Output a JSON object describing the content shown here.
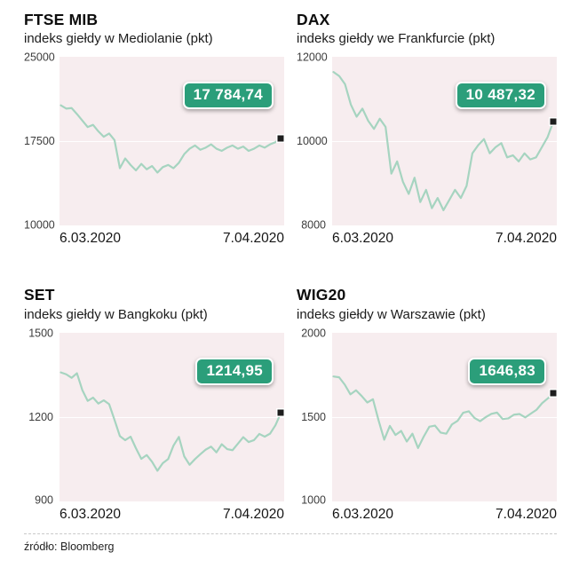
{
  "footer": {
    "source": "źródło: Bloomberg"
  },
  "colors": {
    "line": "#a6d4c0",
    "badge_bg": "#2b9e7a",
    "plot_bg": "#f7edef",
    "marker": "#1e1e1e"
  },
  "chart_data": [
    {
      "type": "line",
      "title": "FTSE MIB",
      "subtitle": "indeks giełdy w Mediolanie (pkt)",
      "badge": "17 784,74",
      "last_value": 17784.74,
      "ylim": [
        10000,
        25000
      ],
      "yticks": [
        25000,
        17500,
        10000
      ],
      "x_range": [
        "6.03.2020",
        "7.04.2020"
      ],
      "xlabel": "",
      "ylabel": "pkt",
      "legend": "none",
      "series": [
        20800,
        20500,
        20550,
        20000,
        19400,
        18800,
        19000,
        18400,
        17900,
        18200,
        17600,
        15000,
        15900,
        15300,
        14800,
        15400,
        14900,
        15200,
        14600,
        15100,
        15300,
        15000,
        15500,
        16300,
        16800,
        17100,
        16700,
        16900,
        17200,
        16800,
        16600,
        16900,
        17100,
        16800,
        17000,
        16600,
        16800,
        17100,
        16900,
        17200,
        17400,
        17784.74
      ]
    },
    {
      "type": "line",
      "title": "DAX",
      "subtitle": "indeks giełdy we Frankfurcie (pkt)",
      "badge": "10 487,32",
      "last_value": 10487.32,
      "ylim": [
        8000,
        12000
      ],
      "yticks": [
        12000,
        10000,
        8000
      ],
      "x_range": [
        "6.03.2020",
        "7.04.2020"
      ],
      "xlabel": "",
      "ylabel": "pkt",
      "legend": "none",
      "series": [
        11700,
        11600,
        11400,
        10900,
        10600,
        10800,
        10500,
        10300,
        10550,
        10350,
        9200,
        9500,
        9000,
        8700,
        9100,
        8500,
        8800,
        8350,
        8600,
        8300,
        8550,
        8800,
        8600,
        8900,
        9700,
        9900,
        10050,
        9700,
        9850,
        9950,
        9600,
        9650,
        9500,
        9700,
        9550,
        9600,
        9850,
        10100,
        10487.32
      ]
    },
    {
      "type": "line",
      "title": "SET",
      "subtitle": "indeks giełdy w Bangkoku (pkt)",
      "badge": "1214,95",
      "last_value": 1214.95,
      "ylim": [
        900,
        1500
      ],
      "yticks": [
        1500,
        1200,
        900
      ],
      "x_range": [
        "6.03.2020",
        "7.04.2020"
      ],
      "xlabel": "",
      "ylabel": "pkt",
      "legend": "none",
      "series": [
        1365,
        1358,
        1345,
        1362,
        1300,
        1260,
        1272,
        1250,
        1262,
        1248,
        1190,
        1130,
        1115,
        1128,
        1085,
        1046,
        1060,
        1035,
        1002,
        1030,
        1045,
        1095,
        1127,
        1055,
        1024,
        1045,
        1063,
        1080,
        1091,
        1070,
        1100,
        1082,
        1078,
        1102,
        1126,
        1108,
        1115,
        1138,
        1128,
        1139,
        1170,
        1214.95
      ]
    },
    {
      "type": "line",
      "title": "WIG20",
      "subtitle": "indeks giełdy w Warszawie (pkt)",
      "badge": "1646,83",
      "last_value": 1646.83,
      "ylim": [
        1000,
        2000
      ],
      "yticks": [
        2000,
        1500,
        1000
      ],
      "x_range": [
        "6.03.2020",
        "7.04.2020"
      ],
      "xlabel": "",
      "ylabel": "pkt",
      "legend": "none",
      "series": [
        1750,
        1745,
        1700,
        1640,
        1665,
        1630,
        1590,
        1610,
        1480,
        1361,
        1446,
        1390,
        1415,
        1350,
        1398,
        1310,
        1380,
        1441,
        1448,
        1405,
        1398,
        1455,
        1477,
        1527,
        1536,
        1495,
        1475,
        1500,
        1520,
        1528,
        1488,
        1492,
        1515,
        1519,
        1498,
        1522,
        1545,
        1586,
        1615,
        1646.83
      ]
    }
  ]
}
